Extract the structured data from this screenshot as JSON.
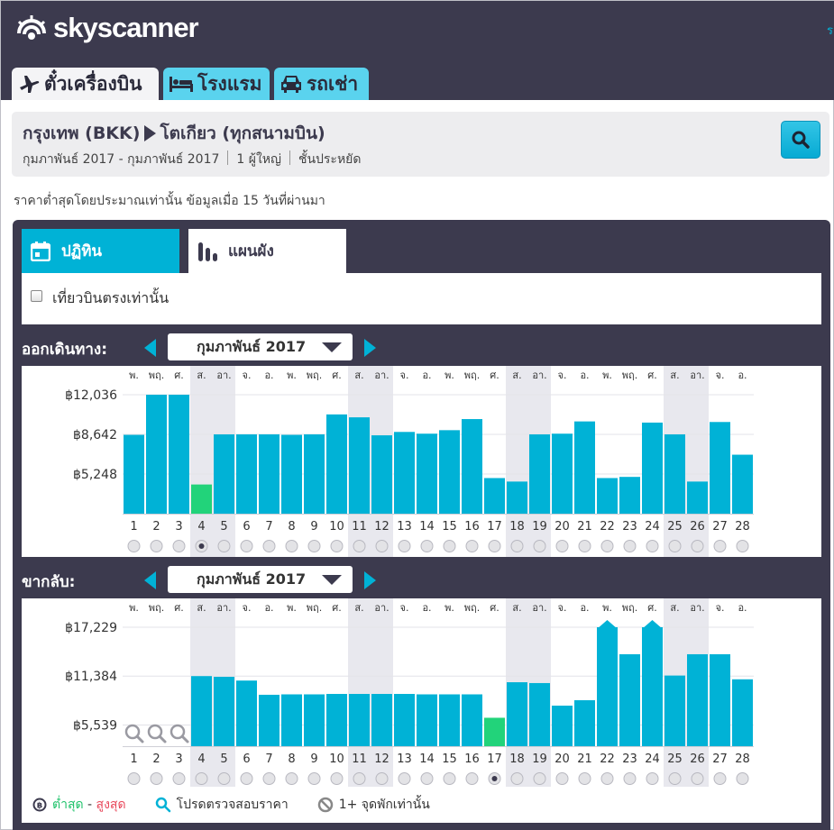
{
  "brand": {
    "name": "skyscanner"
  },
  "corner_link": "ร",
  "tabs": [
    {
      "label": "ตั๋วเครื่องบิน",
      "icon": "airplane-icon",
      "active": true
    },
    {
      "label": "โรงแรม",
      "icon": "bed-icon",
      "active": false
    },
    {
      "label": "รถเช่า",
      "icon": "car-icon",
      "active": false
    }
  ],
  "search": {
    "origin": "กรุงเทพ (BKK)",
    "destination": "โตเกียว (ทุกสนามบิน)",
    "dates": "กุมภาพันธ์ 2017 - กุมภาพันธ์ 2017",
    "travellers": "1 ผู้ใหญ่",
    "cabin": "ชั้นประหยัด",
    "button_icon": "search-icon"
  },
  "notice": "ราคาต่ำสุดโดยประมาณเท่านั้น ข้อมูลเมื่อ 15 วันที่ผ่านมา",
  "view_tabs": {
    "calendar": "ปฏิทิน",
    "chart": "แผนผัง"
  },
  "direct_only": "เที่ยวบินตรงเท่านั้น",
  "colors": {
    "bar": "#00b2d6",
    "selected_bar": "#22d37a",
    "weekend_col": "#e8e8ee",
    "header": "#3c3a4e"
  },
  "chart_data": [
    {
      "type": "bar",
      "direction_label": "ออกเดินทาง:",
      "month": "กุมภาพันธ์ 2017",
      "weekdays": [
        "พ.",
        "พฤ.",
        "ศ.",
        "ส.",
        "อา.",
        "จ.",
        "อ.",
        "พ.",
        "พฤ.",
        "ศ.",
        "ส.",
        "อา.",
        "จ.",
        "อ.",
        "พ.",
        "พฤ.",
        "ศ.",
        "ส.",
        "อา.",
        "จ.",
        "อ.",
        "พ.",
        "พฤ.",
        "ศ.",
        "ส.",
        "อา.",
        "จ.",
        "อ."
      ],
      "weekend": [
        false,
        false,
        false,
        true,
        true,
        false,
        false,
        false,
        false,
        false,
        true,
        true,
        false,
        false,
        false,
        false,
        false,
        true,
        true,
        false,
        false,
        false,
        false,
        false,
        true,
        true,
        false,
        false
      ],
      "categories": [
        "1",
        "2",
        "3",
        "4",
        "5",
        "6",
        "7",
        "8",
        "9",
        "10",
        "11",
        "12",
        "13",
        "14",
        "15",
        "16",
        "17",
        "18",
        "19",
        "20",
        "21",
        "22",
        "23",
        "24",
        "25",
        "26",
        "27",
        "28"
      ],
      "values": [
        8600,
        12036,
        12036,
        4350,
        8642,
        8642,
        8642,
        8600,
        8642,
        10350,
        10100,
        8560,
        8850,
        8700,
        9000,
        9950,
        4900,
        4600,
        8642,
        8700,
        9750,
        4900,
        5000,
        9650,
        8642,
        4600,
        9700,
        6900
      ],
      "yticks": [
        {
          "value": 12036,
          "label": "฿12,036"
        },
        {
          "value": 8642,
          "label": "฿8,642"
        },
        {
          "value": 5248,
          "label": "฿5,248"
        }
      ],
      "ylim": [
        1850,
        12036
      ],
      "selected_day": "4",
      "no_data_days": []
    },
    {
      "type": "bar",
      "direction_label": "ขากลับ:",
      "month": "กุมภาพันธ์ 2017",
      "weekdays": [
        "พ.",
        "พฤ.",
        "ศ.",
        "ส.",
        "อา.",
        "จ.",
        "อ.",
        "พ.",
        "พฤ.",
        "ศ.",
        "ส.",
        "อา.",
        "จ.",
        "อ.",
        "พ.",
        "พฤ.",
        "ศ.",
        "ส.",
        "อา.",
        "จ.",
        "อ.",
        "พ.",
        "พฤ.",
        "ศ.",
        "ส.",
        "อา.",
        "จ.",
        "อ."
      ],
      "weekend": [
        false,
        false,
        false,
        true,
        true,
        false,
        false,
        false,
        false,
        false,
        true,
        true,
        false,
        false,
        false,
        false,
        false,
        true,
        true,
        false,
        false,
        false,
        false,
        false,
        true,
        true,
        false,
        false
      ],
      "categories": [
        "1",
        "2",
        "3",
        "4",
        "5",
        "6",
        "7",
        "8",
        "9",
        "10",
        "11",
        "12",
        "13",
        "14",
        "15",
        "16",
        "17",
        "18",
        "19",
        "20",
        "21",
        "22",
        "23",
        "24",
        "25",
        "26",
        "27",
        "28"
      ],
      "values": [
        null,
        null,
        null,
        11384,
        11300,
        10850,
        9150,
        9200,
        9200,
        9250,
        9250,
        9250,
        9250,
        9200,
        9200,
        9200,
        6400,
        10650,
        10550,
        7850,
        8500,
        17229,
        14000,
        17229,
        11450,
        14000,
        14000,
        11000
      ],
      "yticks": [
        {
          "value": 17229,
          "label": "฿17,229"
        },
        {
          "value": 11384,
          "label": "฿11,384"
        },
        {
          "value": 5539,
          "label": "฿5,539"
        }
      ],
      "ylim": [
        3000,
        17229
      ],
      "capped_days": [
        "22",
        "24"
      ],
      "selected_day": "17",
      "no_data_days": [
        "1",
        "2",
        "3"
      ]
    }
  ],
  "legend": {
    "price_icon": "price-tag-icon",
    "lowest": "ต่ำสุด",
    "dash": " - ",
    "highest": "สูงสุด",
    "check_icon": "magnifier-icon",
    "check": "โปรดตรวจสอบราคา",
    "stops_icon": "no-entry-icon",
    "stops": "1+ จุดพักเท่านั้น"
  }
}
